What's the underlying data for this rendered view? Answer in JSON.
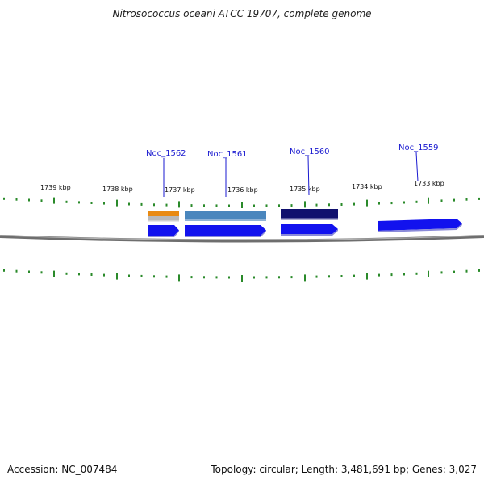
{
  "title": "Nitrosococcus oceani ATCC 19707, complete genome",
  "footer": {
    "accession": "Accession: NC_007484",
    "summary": "Topology: circular; Length: 3,481,691 bp; Genes: 3,027"
  },
  "scale_labels": [
    "1739 kbp",
    "1738 kbp",
    "1737 kbp",
    "1736 kbp",
    "1735 kbp",
    "1734 kbp",
    "1733 kbp"
  ],
  "gene_labels": [
    "Noc_1562",
    "Noc_1561",
    "Noc_1560",
    "Noc_1559"
  ],
  "colors": {
    "tick_green": "#2a8a2a",
    "backbone": "#777777",
    "cds_blue": "#1212ee",
    "cog_orange": "#e98a12",
    "cog_steel": "#4a86bd",
    "cog_navy": "#10106e",
    "cog_gray": "#b9b9b9",
    "label_blue": "#1a1ad0"
  }
}
